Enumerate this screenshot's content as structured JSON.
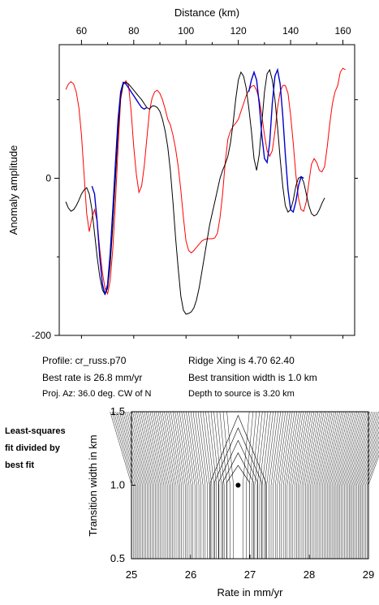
{
  "chart_data": [
    {
      "type": "line",
      "title": "",
      "xlabel": "Distance (km)",
      "ylabel": "Anomaly amplitude",
      "x_ticks": [
        60,
        80,
        100,
        120,
        140,
        160
      ],
      "y_ticks": [
        0,
        -200
      ],
      "xlim": [
        51.5,
        164.5
      ],
      "ylim": [
        -200,
        170
      ],
      "grid": false,
      "series": [
        {
          "color": "#ff0000",
          "points": [
            [
              54,
              113
            ],
            [
              55,
              120
            ],
            [
              56,
              123
            ],
            [
              57,
              120
            ],
            [
              58,
              110
            ],
            [
              59,
              90
            ],
            [
              60,
              55
            ],
            [
              61,
              5
            ],
            [
              62,
              -45
            ],
            [
              63,
              -68
            ],
            [
              64,
              -50
            ],
            [
              65,
              -40
            ],
            [
              66,
              -55
            ],
            [
              67,
              -90
            ],
            [
              68,
              -120
            ],
            [
              69,
              -140
            ],
            [
              70,
              -147
            ],
            [
              71,
              -130
            ],
            [
              72,
              -90
            ],
            [
              73,
              -30
            ],
            [
              74,
              40
            ],
            [
              75,
              100
            ],
            [
              76,
              120
            ],
            [
              77,
              124
            ],
            [
              78,
              118
            ],
            [
              79,
              85
            ],
            [
              80,
              40
            ],
            [
              81,
              5
            ],
            [
              82,
              -18
            ],
            [
              83,
              -10
            ],
            [
              84,
              15
            ],
            [
              85,
              50
            ],
            [
              86,
              85
            ],
            [
              87,
              102
            ],
            [
              88,
              110
            ],
            [
              89,
              112
            ],
            [
              90,
              108
            ],
            [
              91,
              100
            ],
            [
              92,
              88
            ],
            [
              93,
              75
            ],
            [
              94,
              68
            ],
            [
              95,
              55
            ],
            [
              96,
              38
            ],
            [
              97,
              15
            ],
            [
              98,
              -15
            ],
            [
              99,
              -50
            ],
            [
              100,
              -80
            ],
            [
              101,
              -92
            ],
            [
              102,
              -95
            ],
            [
              103,
              -92
            ],
            [
              104,
              -88
            ],
            [
              105,
              -84
            ],
            [
              106,
              -80
            ],
            [
              107,
              -78
            ],
            [
              108,
              -77
            ],
            [
              109,
              -77
            ],
            [
              110,
              -77
            ],
            [
              111,
              -76
            ],
            [
              112,
              -70
            ],
            [
              113,
              -50
            ],
            [
              114,
              -20
            ],
            [
              115,
              20
            ],
            [
              116,
              50
            ],
            [
              117,
              60
            ],
            [
              118,
              66
            ],
            [
              119,
              70
            ],
            [
              120,
              75
            ],
            [
              121,
              85
            ],
            [
              122,
              95
            ],
            [
              123,
              105
            ],
            [
              124,
              112
            ],
            [
              125,
              117
            ],
            [
              126,
              118
            ],
            [
              127,
              112
            ],
            [
              128,
              100
            ],
            [
              129,
              80
            ],
            [
              130,
              55
            ],
            [
              131,
              35
            ],
            [
              132,
              28
            ],
            [
              133,
              35
            ],
            [
              134,
              60
            ],
            [
              135,
              90
            ],
            [
              136,
              110
            ],
            [
              137,
              118
            ],
            [
              138,
              118
            ],
            [
              139,
              108
            ],
            [
              140,
              80
            ],
            [
              141,
              45
            ],
            [
              142,
              5
            ],
            [
              143,
              -25
            ],
            [
              144,
              -40
            ],
            [
              145,
              -42
            ],
            [
              146,
              -30
            ],
            [
              147,
              -5
            ],
            [
              148,
              18
            ],
            [
              149,
              25
            ],
            [
              150,
              20
            ],
            [
              151,
              10
            ],
            [
              152,
              8
            ],
            [
              153,
              15
            ],
            [
              154,
              40
            ],
            [
              155,
              70
            ],
            [
              156,
              95
            ],
            [
              157,
              110
            ],
            [
              158,
              118
            ],
            [
              159,
              135
            ],
            [
              160,
              140
            ],
            [
              161,
              138
            ]
          ]
        },
        {
          "color": "#000000",
          "points": [
            [
              54,
              -30
            ],
            [
              55,
              -38
            ],
            [
              56,
              -42
            ],
            [
              57,
              -40
            ],
            [
              58,
              -35
            ],
            [
              59,
              -28
            ],
            [
              60,
              -20
            ],
            [
              61,
              -15
            ],
            [
              62,
              -12
            ],
            [
              63,
              -20
            ],
            [
              64,
              -40
            ],
            [
              65,
              -70
            ],
            [
              66,
              -100
            ],
            [
              67,
              -125
            ],
            [
              68,
              -142
            ],
            [
              69,
              -148
            ],
            [
              70,
              -140
            ],
            [
              71,
              -110
            ],
            [
              72,
              -60
            ],
            [
              73,
              0
            ],
            [
              74,
              60
            ],
            [
              75,
              105
            ],
            [
              76,
              120
            ],
            [
              77,
              122
            ],
            [
              78,
              120
            ],
            [
              79,
              116
            ],
            [
              80,
              112
            ],
            [
              81,
              108
            ],
            [
              82,
              104
            ],
            [
              83,
              100
            ],
            [
              84,
              95
            ],
            [
              85,
              90
            ],
            [
              86,
              88
            ],
            [
              87,
              92
            ],
            [
              88,
              92
            ],
            [
              89,
              90
            ],
            [
              90,
              85
            ],
            [
              91,
              75
            ],
            [
              92,
              60
            ],
            [
              93,
              40
            ],
            [
              94,
              10
            ],
            [
              95,
              -30
            ],
            [
              96,
              -75
            ],
            [
              97,
              -115
            ],
            [
              98,
              -150
            ],
            [
              99,
              -168
            ],
            [
              100,
              -173
            ],
            [
              101,
              -172
            ],
            [
              102,
              -170
            ],
            [
              103,
              -165
            ],
            [
              104,
              -155
            ],
            [
              105,
              -140
            ],
            [
              106,
              -120
            ],
            [
              107,
              -100
            ],
            [
              108,
              -80
            ],
            [
              109,
              -60
            ],
            [
              110,
              -45
            ],
            [
              111,
              -30
            ],
            [
              112,
              -15
            ],
            [
              113,
              0
            ],
            [
              114,
              10
            ],
            [
              115,
              18
            ],
            [
              116,
              28
            ],
            [
              117,
              45
            ],
            [
              118,
              70
            ],
            [
              119,
              100
            ],
            [
              120,
              125
            ],
            [
              121,
              135
            ],
            [
              122,
              130
            ],
            [
              123,
              115
            ],
            [
              124,
              90
            ],
            [
              125,
              60
            ],
            [
              126,
              25
            ],
            [
              127,
              10
            ],
            [
              128,
              30
            ],
            [
              129,
              70
            ],
            [
              130,
              110
            ],
            [
              131,
              133
            ],
            [
              132,
              138
            ],
            [
              133,
              125
            ],
            [
              134,
              100
            ],
            [
              135,
              65
            ],
            [
              136,
              25
            ],
            [
              137,
              -10
            ],
            [
              138,
              -35
            ],
            [
              139,
              -43
            ],
            [
              140,
              -40
            ],
            [
              141,
              -28
            ],
            [
              142,
              -10
            ],
            [
              143,
              0
            ],
            [
              144,
              2
            ],
            [
              145,
              -5
            ],
            [
              146,
              -20
            ],
            [
              147,
              -35
            ],
            [
              148,
              -45
            ],
            [
              149,
              -48
            ],
            [
              150,
              -46
            ],
            [
              151,
              -40
            ],
            [
              152,
              -32
            ],
            [
              153,
              -25
            ]
          ]
        },
        {
          "color": "#0000cc",
          "points": [
            [
              64,
              -10
            ],
            [
              65,
              -20
            ],
            [
              66,
              -55
            ],
            [
              67,
              -100
            ],
            [
              68,
              -135
            ],
            [
              69,
              -148
            ],
            [
              70,
              -135
            ],
            [
              71,
              -95
            ],
            [
              72,
              -40
            ],
            [
              73,
              20
            ],
            [
              74,
              75
            ],
            [
              75,
              110
            ],
            [
              76,
              122
            ],
            [
              77,
              120
            ],
            [
              78,
              115
            ],
            [
              79,
              110
            ],
            [
              80,
              105
            ],
            [
              81,
              100
            ],
            [
              82,
              95
            ],
            [
              83,
              90
            ],
            [
              84,
              88
            ],
            [
              85,
              90
            ]
          ]
        },
        {
          "color": "#0000cc",
          "points": [
            [
              124,
              110
            ],
            [
              125,
              125
            ],
            [
              126,
              135
            ],
            [
              127,
              125
            ],
            [
              128,
              95
            ],
            [
              129,
              55
            ],
            [
              130,
              25
            ],
            [
              131,
              20
            ],
            [
              132,
              45
            ],
            [
              133,
              95
            ],
            [
              134,
              130
            ],
            [
              135,
              138
            ],
            [
              136,
              120
            ],
            [
              137,
              80
            ],
            [
              138,
              30
            ],
            [
              139,
              -15
            ],
            [
              140,
              -40
            ],
            [
              141,
              -43
            ],
            [
              142,
              -30
            ],
            [
              143,
              -10
            ],
            [
              144,
              2
            ],
            [
              145,
              0
            ]
          ]
        }
      ]
    },
    {
      "type": "contour",
      "title": "",
      "xlabel": "Rate in mm/yr",
      "ylabel": "Transition width in km",
      "x_ticks": [
        25,
        26,
        27,
        28,
        29
      ],
      "y_ticks": [
        0.5,
        1.0,
        1.5
      ],
      "xlim": [
        25,
        29
      ],
      "ylim": [
        0.5,
        1.5
      ],
      "best_fit_point": {
        "rate": 26.8,
        "width": 1.0
      }
    }
  ],
  "info": {
    "profile": "Profile: cr_russ.p70",
    "best_rate": "Best rate is 26.8 mm/yr",
    "proj_az": "Proj. Az: 36.0 deg. CW of N",
    "ridge_xing": "Ridge Xing is 4.70 62.40",
    "best_transition": "Best transition width is 1.0 km",
    "depth": "Depth to source is   3.20 km"
  },
  "side_note": {
    "line1": "Least-squares",
    "line2": "fit divided by",
    "line3": "best fit"
  }
}
